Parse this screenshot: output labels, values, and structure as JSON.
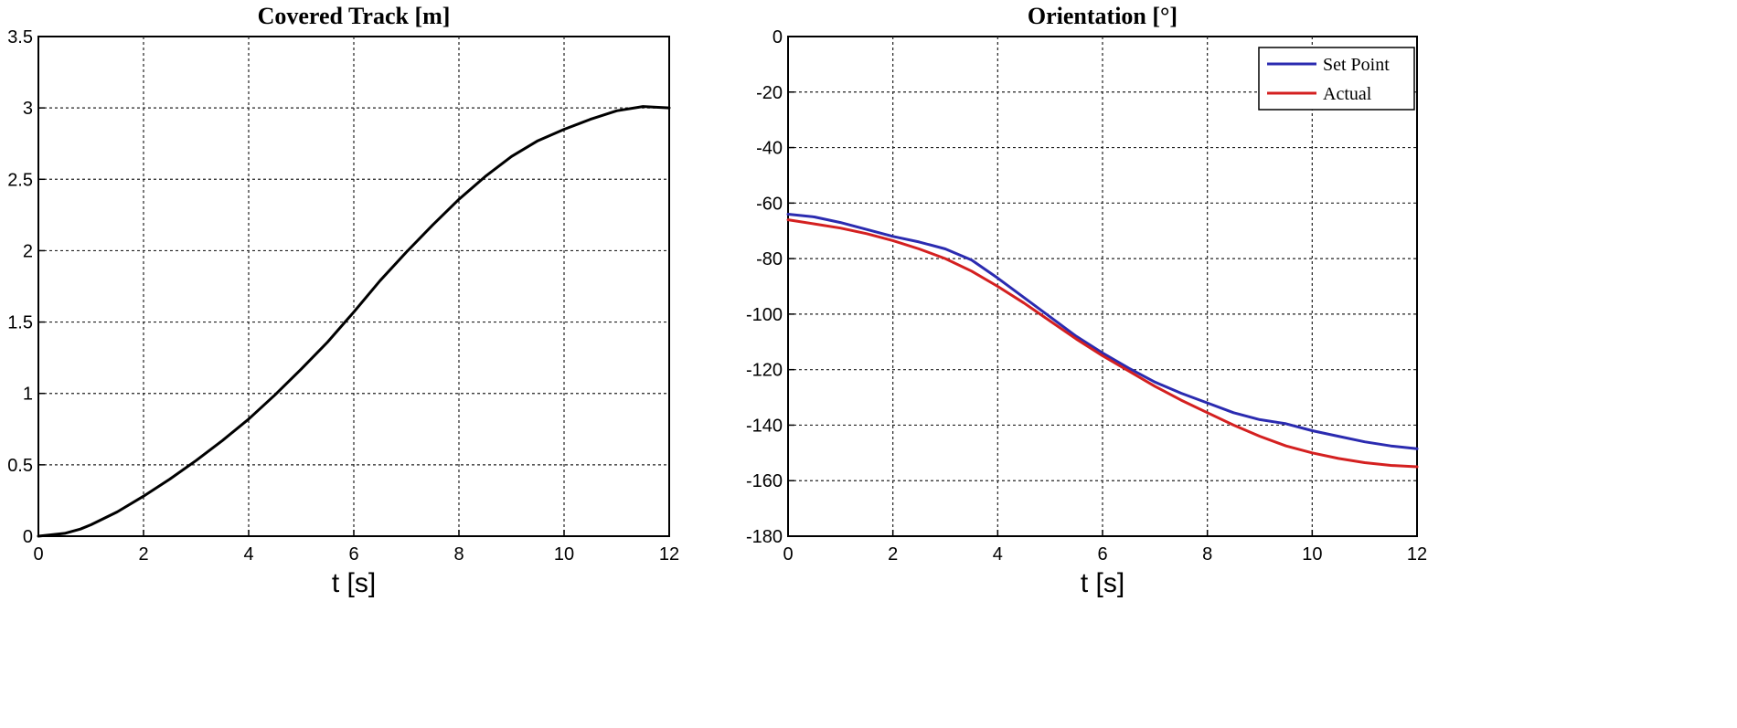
{
  "chart_data": [
    {
      "type": "line",
      "title": "Covered Track [m]",
      "xlabel": "t [s]",
      "ylabel": "",
      "xlim": [
        0,
        12
      ],
      "ylim": [
        0,
        3.5
      ],
      "xticks": [
        0,
        2,
        4,
        6,
        8,
        10,
        12
      ],
      "xtick_labels": [
        "0",
        "2",
        "4",
        "6",
        "8",
        "10",
        "12"
      ],
      "yticks": [
        0,
        0.5,
        1,
        1.5,
        2,
        2.5,
        3,
        3.5
      ],
      "ytick_labels": [
        "0",
        "0.5",
        "1",
        "1.5",
        "2",
        "2.5",
        "3",
        "3.5"
      ],
      "grid": true,
      "series": [
        {
          "name": "Covered Track",
          "color": "#000000",
          "x": [
            0,
            0.5,
            0.8,
            1,
            1.5,
            2,
            2.5,
            3,
            3.5,
            4,
            4.5,
            5,
            5.5,
            6,
            6.5,
            7,
            7.5,
            8,
            8.5,
            9,
            9.5,
            10,
            10.5,
            11,
            11.5,
            12
          ],
          "y": [
            0,
            0.02,
            0.05,
            0.08,
            0.17,
            0.28,
            0.4,
            0.53,
            0.67,
            0.82,
            0.99,
            1.17,
            1.36,
            1.57,
            1.79,
            1.99,
            2.18,
            2.36,
            2.52,
            2.66,
            2.77,
            2.85,
            2.92,
            2.98,
            3.01,
            3.0
          ]
        }
      ]
    },
    {
      "type": "line",
      "title": "Orientation [°]",
      "xlabel": "t [s]",
      "ylabel": "",
      "xlim": [
        0,
        12
      ],
      "ylim": [
        -180,
        0
      ],
      "xticks": [
        0,
        2,
        4,
        6,
        8,
        10,
        12
      ],
      "xtick_labels": [
        "0",
        "2",
        "4",
        "6",
        "8",
        "10",
        "12"
      ],
      "yticks": [
        0,
        -20,
        -40,
        -60,
        -80,
        -100,
        -120,
        -140,
        -160,
        -180
      ],
      "ytick_labels": [
        "0",
        "-20",
        "-40",
        "-60",
        "-80",
        "-100",
        "-120",
        "-140",
        "-160",
        "-180"
      ],
      "grid": true,
      "legend": {
        "position": "top-right"
      },
      "series": [
        {
          "name": "Set Point",
          "color": "#2b2bb0",
          "x": [
            0,
            0.5,
            1,
            1.5,
            2,
            2.5,
            3,
            3.5,
            4,
            4.5,
            5,
            5.5,
            6,
            6.5,
            7,
            7.5,
            8,
            8.5,
            9,
            9.5,
            10,
            10.5,
            11,
            11.5,
            12
          ],
          "y": [
            -64,
            -65,
            -67,
            -69.5,
            -72,
            -74,
            -76.5,
            -80.5,
            -87,
            -94,
            -101,
            -108,
            -114,
            -119.5,
            -124.5,
            -128.5,
            -132,
            -135.5,
            -138,
            -139.5,
            -142,
            -144,
            -146,
            -147.5,
            -148.5
          ]
        },
        {
          "name": "Actual",
          "color": "#d42020",
          "x": [
            0,
            0.5,
            1,
            1.5,
            2,
            2.5,
            3,
            3.5,
            4,
            4.5,
            5,
            5.5,
            6,
            6.5,
            7,
            7.5,
            8,
            8.5,
            9,
            9.5,
            10,
            10.5,
            11,
            11.5,
            12
          ],
          "y": [
            -66,
            -67.5,
            -69,
            -71,
            -73.5,
            -76.5,
            -80,
            -84.5,
            -90,
            -96,
            -102.5,
            -109,
            -115,
            -120.5,
            -126,
            -131,
            -135.5,
            -140,
            -144,
            -147.5,
            -150,
            -152,
            -153.5,
            -154.5,
            -155
          ]
        }
      ]
    }
  ]
}
